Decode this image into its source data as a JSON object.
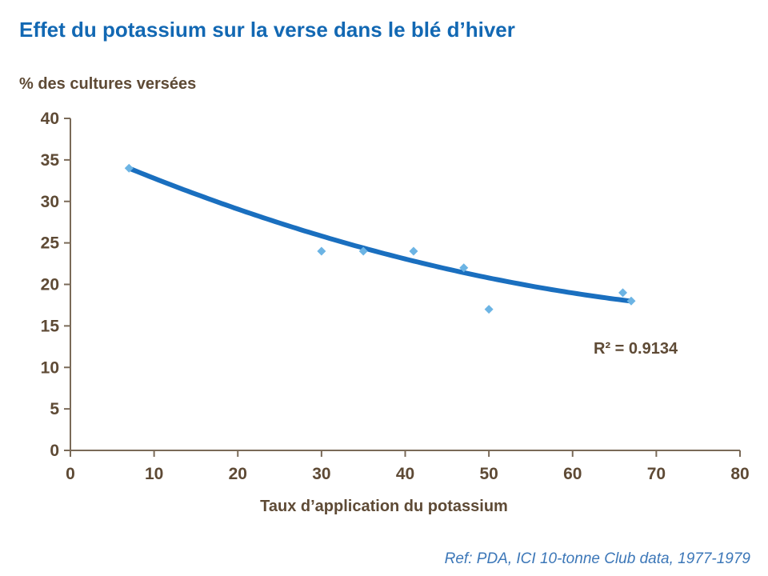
{
  "title": "Effet du potassium sur la verse dans le blé d’hiver",
  "y_axis_title": "% des cultures versées",
  "x_axis_title": "Taux d’application du potassium",
  "annotation_r2": "R² = 0.9134",
  "reference": "Ref: PDA, ICI 10-tonne Club data, 1977-1979",
  "colors": {
    "title_blue": "#1268b3",
    "label_brown": "#5e4a35",
    "axis_line": "#7a6a58",
    "point_blue": "#6cb4e4",
    "trend_blue": "#1a6fbf",
    "reference_blue": "#3c77b8"
  },
  "chart_data": {
    "type": "scatter",
    "title": "Effet du potassium sur la verse dans le blé d’hiver",
    "xlabel": "Taux d’application du potassium",
    "ylabel": "% des cultures versées",
    "xlim": [
      0,
      80
    ],
    "ylim": [
      0,
      40
    ],
    "x_ticks": [
      0,
      10,
      20,
      30,
      40,
      50,
      60,
      70,
      80
    ],
    "y_ticks": [
      0,
      5,
      10,
      15,
      20,
      25,
      30,
      35,
      40
    ],
    "grid": false,
    "legend": false,
    "points": [
      {
        "x": 7,
        "y": 34
      },
      {
        "x": 30,
        "y": 24
      },
      {
        "x": 35,
        "y": 24
      },
      {
        "x": 41,
        "y": 24
      },
      {
        "x": 47,
        "y": 22
      },
      {
        "x": 50,
        "y": 17
      },
      {
        "x": 66,
        "y": 19
      },
      {
        "x": 67,
        "y": 18
      }
    ],
    "trend": {
      "type": "polynomial2",
      "a": 0.00238,
      "b": -0.443,
      "c": 36.98,
      "x_min": 7,
      "x_max": 67,
      "r_squared": 0.9134
    }
  }
}
